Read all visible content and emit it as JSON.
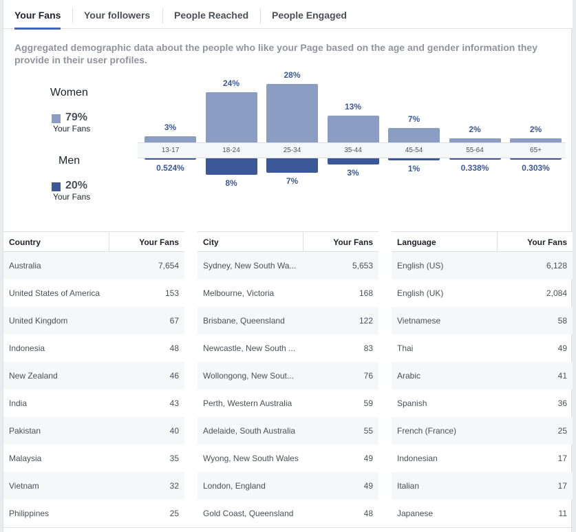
{
  "tabs": [
    {
      "label": "Your Fans",
      "active": true
    },
    {
      "label": "Your followers",
      "active": false
    },
    {
      "label": "People Reached",
      "active": false
    },
    {
      "label": "People Engaged",
      "active": false
    }
  ],
  "description": "Aggregated demographic data about the people who like your Page based on the age and gender information they provide in their user profiles.",
  "legend": {
    "women": {
      "label": "Women",
      "percent": "79%",
      "sub": "Your Fans",
      "color": "#8b9dc3"
    },
    "men": {
      "label": "Men",
      "percent": "20%",
      "sub": "Your Fans",
      "color": "#3b5998"
    }
  },
  "chart_data": {
    "type": "bar",
    "categories": [
      "13-17",
      "18-24",
      "25-34",
      "35-44",
      "45-54",
      "55-64",
      "65+"
    ],
    "series": [
      {
        "name": "Women",
        "values": [
          3,
          24,
          28,
          13,
          7,
          2,
          2
        ],
        "labels": [
          "3%",
          "24%",
          "28%",
          "13%",
          "7%",
          "2%",
          "2%"
        ]
      },
      {
        "name": "Men",
        "values": [
          0.524,
          8,
          7,
          3,
          1,
          0.338,
          0.303
        ],
        "labels": [
          "0.524%",
          "8%",
          "7%",
          "3%",
          "1%",
          "0.338%",
          "0.303%"
        ]
      }
    ]
  },
  "tables": [
    {
      "col1": "Country",
      "col2": "Your Fans",
      "rows": [
        [
          "Australia",
          "7,654"
        ],
        [
          "United States of America",
          "153"
        ],
        [
          "United Kingdom",
          "67"
        ],
        [
          "Indonesia",
          "48"
        ],
        [
          "New Zealand",
          "46"
        ],
        [
          "India",
          "43"
        ],
        [
          "Pakistan",
          "40"
        ],
        [
          "Malaysia",
          "35"
        ],
        [
          "Vietnam",
          "32"
        ],
        [
          "Philippines",
          "25"
        ]
      ]
    },
    {
      "col1": "City",
      "col2": "Your Fans",
      "rows": [
        [
          "Sydney, New South Wa...",
          "5,653"
        ],
        [
          "Melbourne, Victoria",
          "168"
        ],
        [
          "Brisbane, Queensland",
          "122"
        ],
        [
          "Newcastle, New South ...",
          "83"
        ],
        [
          "Wollongong, New Sout...",
          "76"
        ],
        [
          "Perth, Western Australia",
          "59"
        ],
        [
          "Adelaide, South Australia",
          "55"
        ],
        [
          "Wyong, New South Wales",
          "49"
        ],
        [
          "London, England",
          "49"
        ],
        [
          "Gold Coast, Queensland",
          "48"
        ]
      ]
    },
    {
      "col1": "Language",
      "col2": "Your Fans",
      "rows": [
        [
          "English (US)",
          "6,128"
        ],
        [
          "English (UK)",
          "2,084"
        ],
        [
          "Vietnamese",
          "58"
        ],
        [
          "Thai",
          "49"
        ],
        [
          "Arabic",
          "41"
        ],
        [
          "Spanish",
          "36"
        ],
        [
          "French (France)",
          "25"
        ],
        [
          "Indonesian",
          "17"
        ],
        [
          "Italian",
          "17"
        ],
        [
          "Japanese",
          "11"
        ]
      ]
    }
  ]
}
